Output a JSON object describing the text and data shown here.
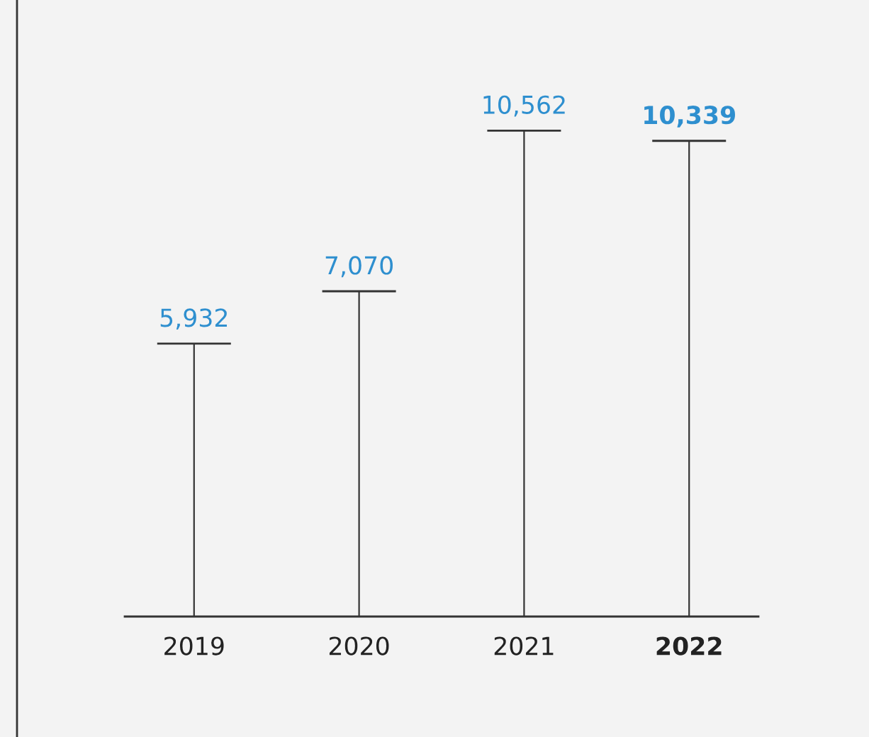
{
  "chart_data": {
    "type": "bar",
    "categories": [
      "2019",
      "2020",
      "2021",
      "2022"
    ],
    "values": [
      5932,
      7070,
      10562,
      10339
    ],
    "value_labels": [
      "5,932",
      "7,070",
      "10,562",
      "10,339"
    ],
    "color": "#333333",
    "legend": false,
    "tick_labels": "x"
  }
}
